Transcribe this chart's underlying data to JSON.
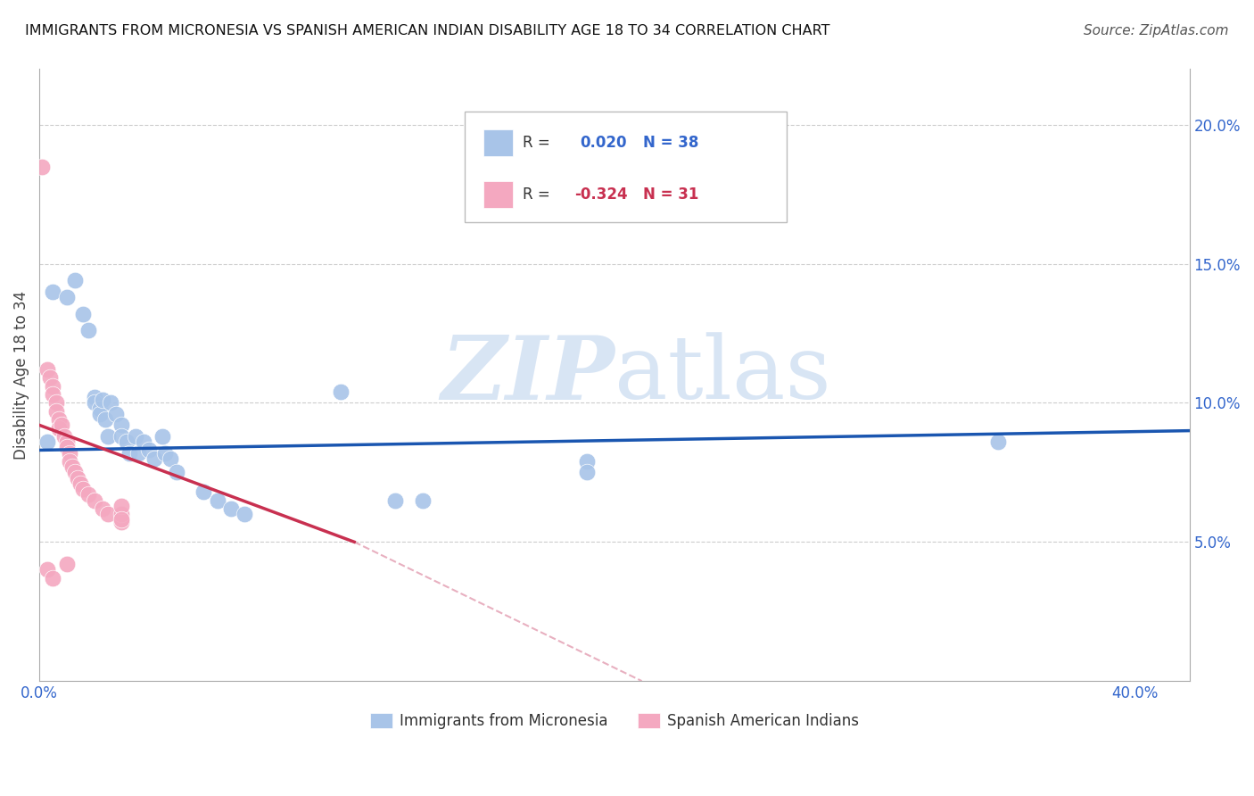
{
  "title": "IMMIGRANTS FROM MICRONESIA VS SPANISH AMERICAN INDIAN DISABILITY AGE 18 TO 34 CORRELATION CHART",
  "source": "Source: ZipAtlas.com",
  "ylabel": "Disability Age 18 to 34",
  "xlim": [
    0.0,
    0.42
  ],
  "ylim": [
    0.0,
    0.22
  ],
  "blue_R": "0.020",
  "blue_N": "38",
  "pink_R": "-0.324",
  "pink_N": "31",
  "blue_color": "#a8c4e8",
  "pink_color": "#f4a8c0",
  "blue_line_color": "#1a56b0",
  "pink_line_color": "#c83050",
  "pink_dash_color": "#e8b0c0",
  "watermark_zip": "ZIP",
  "watermark_atlas": "atlas",
  "legend_label_blue": "Immigrants from Micronesia",
  "legend_label_pink": "Spanish American Indians",
  "blue_points": [
    [
      0.003,
      0.086
    ],
    [
      0.005,
      0.14
    ],
    [
      0.01,
      0.138
    ],
    [
      0.013,
      0.144
    ],
    [
      0.016,
      0.132
    ],
    [
      0.018,
      0.126
    ],
    [
      0.02,
      0.102
    ],
    [
      0.02,
      0.1
    ],
    [
      0.022,
      0.098
    ],
    [
      0.022,
      0.096
    ],
    [
      0.023,
      0.101
    ],
    [
      0.024,
      0.094
    ],
    [
      0.025,
      0.088
    ],
    [
      0.026,
      0.1
    ],
    [
      0.028,
      0.096
    ],
    [
      0.03,
      0.092
    ],
    [
      0.03,
      0.088
    ],
    [
      0.032,
      0.086
    ],
    [
      0.033,
      0.082
    ],
    [
      0.035,
      0.088
    ],
    [
      0.036,
      0.082
    ],
    [
      0.038,
      0.086
    ],
    [
      0.04,
      0.083
    ],
    [
      0.042,
      0.08
    ],
    [
      0.045,
      0.088
    ],
    [
      0.046,
      0.082
    ],
    [
      0.048,
      0.08
    ],
    [
      0.05,
      0.075
    ],
    [
      0.06,
      0.068
    ],
    [
      0.065,
      0.065
    ],
    [
      0.07,
      0.062
    ],
    [
      0.075,
      0.06
    ],
    [
      0.11,
      0.104
    ],
    [
      0.13,
      0.065
    ],
    [
      0.14,
      0.065
    ],
    [
      0.2,
      0.079
    ],
    [
      0.2,
      0.075
    ],
    [
      0.35,
      0.086
    ]
  ],
  "pink_points": [
    [
      0.001,
      0.185
    ],
    [
      0.003,
      0.112
    ],
    [
      0.004,
      0.109
    ],
    [
      0.005,
      0.106
    ],
    [
      0.005,
      0.103
    ],
    [
      0.006,
      0.1
    ],
    [
      0.006,
      0.097
    ],
    [
      0.007,
      0.094
    ],
    [
      0.007,
      0.091
    ],
    [
      0.008,
      0.092
    ],
    [
      0.009,
      0.088
    ],
    [
      0.01,
      0.086
    ],
    [
      0.01,
      0.084
    ],
    [
      0.011,
      0.082
    ],
    [
      0.011,
      0.079
    ],
    [
      0.012,
      0.077
    ],
    [
      0.013,
      0.075
    ],
    [
      0.014,
      0.073
    ],
    [
      0.015,
      0.071
    ],
    [
      0.016,
      0.069
    ],
    [
      0.018,
      0.067
    ],
    [
      0.02,
      0.065
    ],
    [
      0.023,
      0.062
    ],
    [
      0.025,
      0.06
    ],
    [
      0.03,
      0.057
    ],
    [
      0.03,
      0.06
    ],
    [
      0.03,
      0.063
    ],
    [
      0.03,
      0.058
    ],
    [
      0.003,
      0.04
    ],
    [
      0.005,
      0.037
    ],
    [
      0.01,
      0.042
    ]
  ],
  "blue_line": [
    [
      0.0,
      0.083
    ],
    [
      0.42,
      0.09
    ]
  ],
  "pink_line_solid": [
    [
      0.0,
      0.092
    ],
    [
      0.115,
      0.05
    ]
  ],
  "pink_line_dash": [
    [
      0.115,
      0.05
    ],
    [
      0.22,
      0.0
    ]
  ]
}
